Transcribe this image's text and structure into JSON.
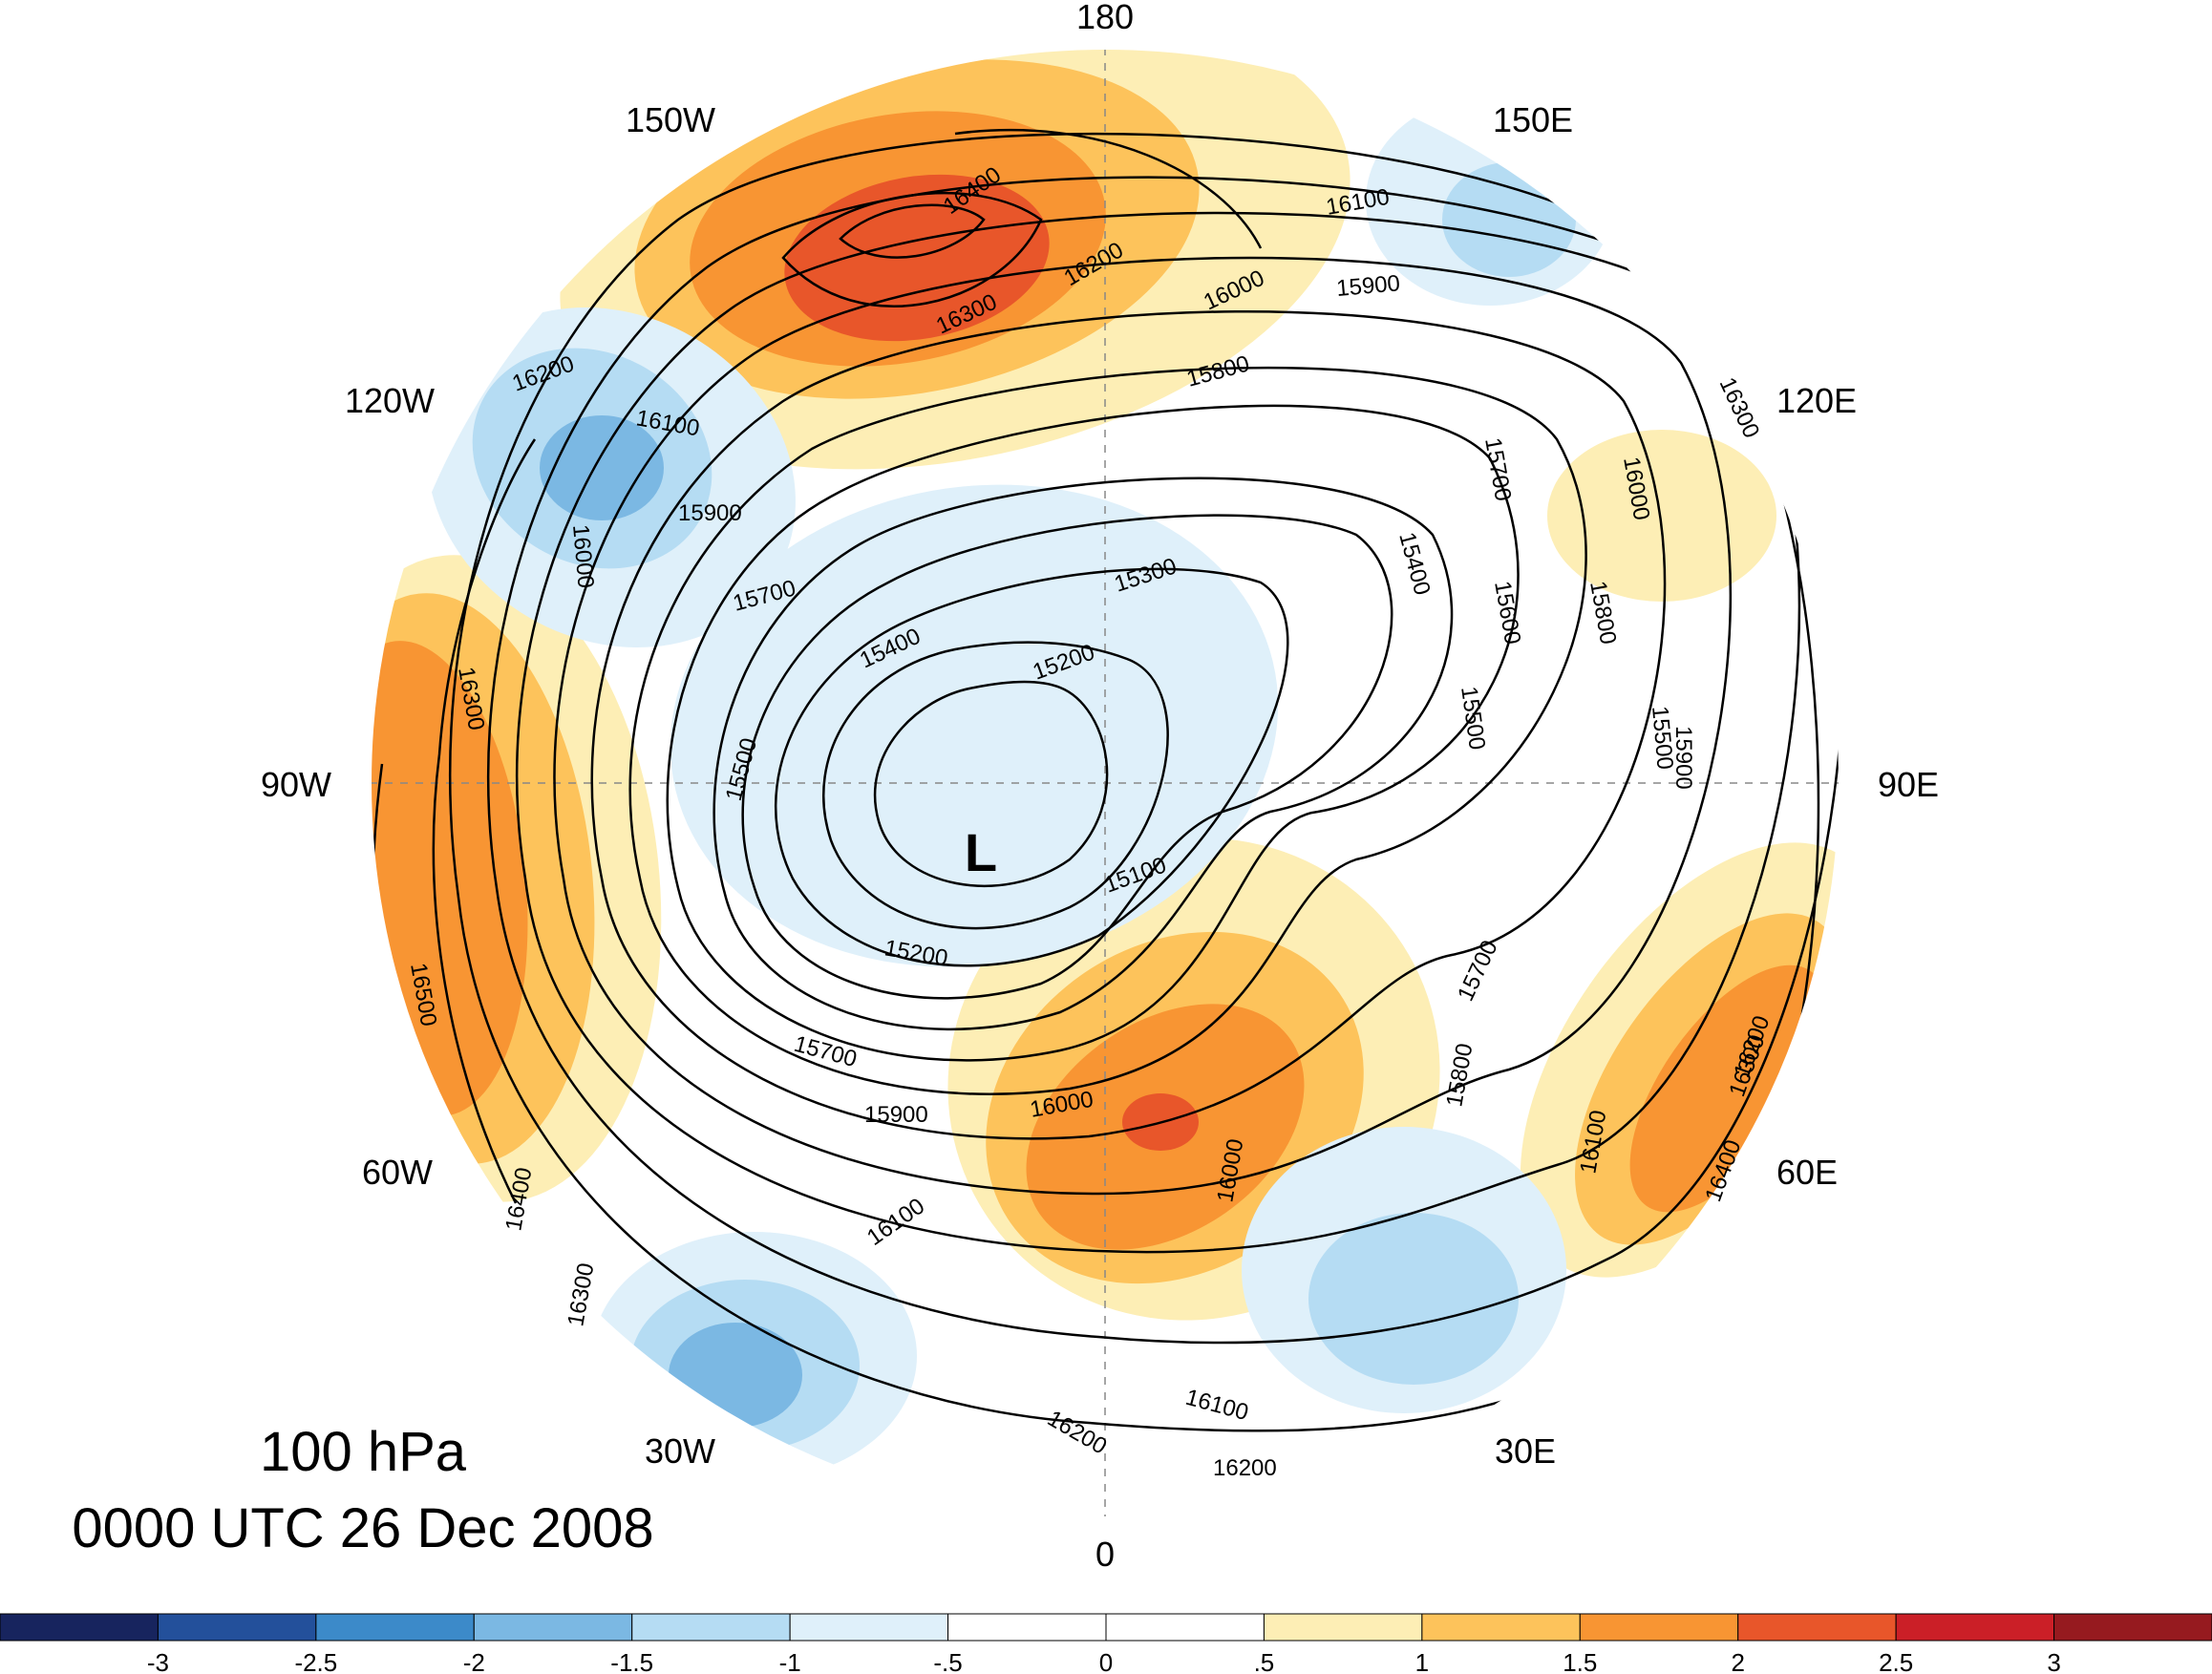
{
  "map": {
    "level": "100 hPa",
    "datetime": "0000 UTC 26 Dec 2008",
    "low_marker": "L",
    "longitude_labels": [
      "180",
      "150E",
      "120E",
      "90E",
      "60E",
      "30E",
      "0",
      "30W",
      "60W",
      "90W",
      "120W",
      "150W"
    ],
    "contour_labels": [
      "15100",
      "15200",
      "15200",
      "15300",
      "15400",
      "15400",
      "15500",
      "15500",
      "15500",
      "15600",
      "15700",
      "15700",
      "15700",
      "15700",
      "15800",
      "15800",
      "15800",
      "15900",
      "15900",
      "15900",
      "15900",
      "16000",
      "16000",
      "16000",
      "16000",
      "16000",
      "16100",
      "16100",
      "16100",
      "16100",
      "16100",
      "16200",
      "16200",
      "16200",
      "16200",
      "16200",
      "16300",
      "16300",
      "16300",
      "16300",
      "16300",
      "16400",
      "16400",
      "16400",
      "16500"
    ],
    "colors": {
      "neg3": "#17245e",
      "neg25": "#23509b",
      "neg2": "#3c8ac9",
      "neg15": "#7bb8e3",
      "neg1": "#b5dcf3",
      "neg05": "#dff0fa",
      "zero": "#ffffff",
      "pos05": "#fdeeb5",
      "pos1": "#fdc35b",
      "pos15": "#f89533",
      "pos2": "#e8562a",
      "pos25": "#cb1f27",
      "pos3": "#961a1f"
    }
  },
  "colorbar": {
    "tick_labels": [
      "-3",
      "-2.5",
      "-2",
      "-1.5",
      "-1",
      "-.5",
      "0",
      ".5",
      "1",
      "1.5",
      "2",
      "2.5",
      "3"
    ],
    "colors": [
      "#17245e",
      "#23509b",
      "#3c8ac9",
      "#7bb8e3",
      "#b5dcf3",
      "#dff0fa",
      "#ffffff",
      "#ffffff",
      "#fdeeb5",
      "#fdc35b",
      "#f89533",
      "#e8562a",
      "#cb1f27",
      "#961a1f"
    ]
  }
}
